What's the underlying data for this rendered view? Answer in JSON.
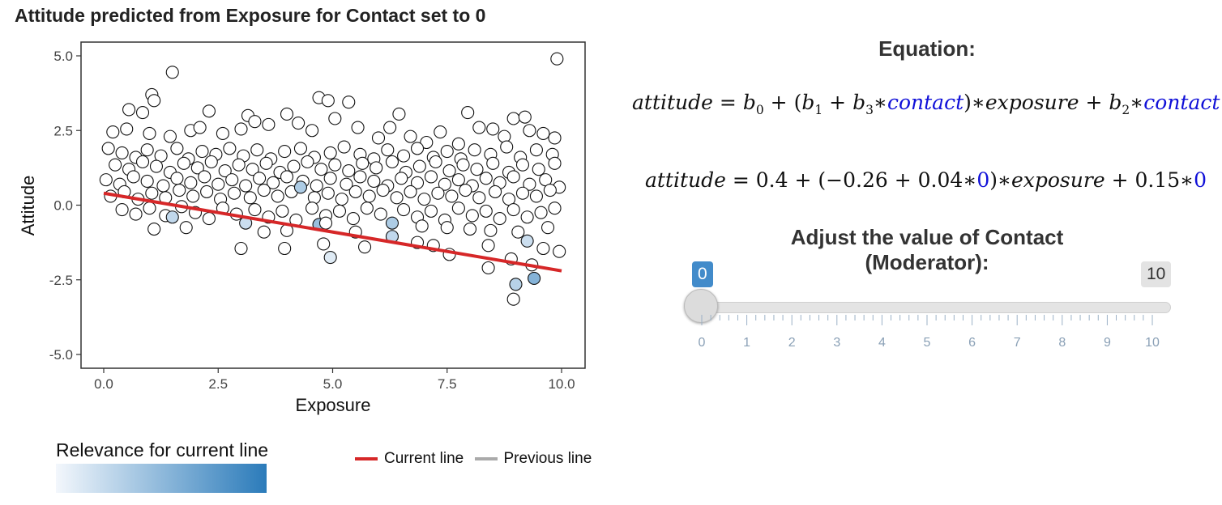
{
  "plot": {
    "title": "Attitude predicted from Exposure for Contact set to 0"
  },
  "chart_data": {
    "type": "scatter",
    "title": "Attitude predicted from Exposure for Contact set to 0",
    "xlabel": "Exposure",
    "ylabel": "Attitude",
    "xlim": [
      0,
      10
    ],
    "ylim": [
      -5,
      5
    ],
    "x_ticks": [
      "0.0",
      "2.5",
      "5.0",
      "7.5",
      "10.0"
    ],
    "y_ticks": [
      "-5.0",
      "-2.5",
      "0.0",
      "2.5",
      "5.0"
    ],
    "grid": false,
    "regression_line": {
      "name": "Current line",
      "intercept": 0.4,
      "slope": -0.26,
      "color": "#d62728"
    },
    "legend": {
      "color_title": "Relevance for current line",
      "color_low": "#f3f7fc",
      "color_high": "#2b7bba",
      "line_items": [
        {
          "label": "Current line",
          "color": "#d62728"
        },
        {
          "label": "Previous line",
          "color": "#aaaaaa"
        }
      ]
    },
    "points_note_relevance_0_to_1": [],
    "points": [
      [
        9.9,
        4.9,
        0
      ],
      [
        1.5,
        4.45,
        0
      ],
      [
        1.05,
        3.7,
        0
      ],
      [
        1.1,
        3.5,
        0
      ],
      [
        0.55,
        3.2,
        0
      ],
      [
        0.85,
        3.1,
        0
      ],
      [
        2.3,
        3.15,
        0
      ],
      [
        3.15,
        3.0,
        0
      ],
      [
        4.0,
        3.05,
        0
      ],
      [
        4.7,
        3.6,
        0
      ],
      [
        4.9,
        3.5,
        0
      ],
      [
        5.35,
        3.45,
        0
      ],
      [
        6.45,
        3.05,
        0
      ],
      [
        7.95,
        3.1,
        0
      ],
      [
        8.95,
        2.9,
        0
      ],
      [
        9.2,
        2.95,
        0
      ],
      [
        0.2,
        2.45,
        0
      ],
      [
        0.5,
        2.55,
        0
      ],
      [
        1.0,
        2.4,
        0
      ],
      [
        1.45,
        2.3,
        0
      ],
      [
        1.9,
        2.5,
        0
      ],
      [
        2.1,
        2.6,
        0
      ],
      [
        2.6,
        2.4,
        0
      ],
      [
        3.0,
        2.55,
        0
      ],
      [
        3.3,
        2.8,
        0
      ],
      [
        3.6,
        2.7,
        0
      ],
      [
        4.25,
        2.75,
        0
      ],
      [
        4.55,
        2.5,
        0
      ],
      [
        5.05,
        2.9,
        0
      ],
      [
        5.55,
        2.6,
        0
      ],
      [
        6.0,
        2.25,
        0
      ],
      [
        6.25,
        2.6,
        0
      ],
      [
        6.7,
        2.3,
        0
      ],
      [
        7.05,
        2.1,
        0
      ],
      [
        7.35,
        2.45,
        0
      ],
      [
        7.75,
        2.05,
        0
      ],
      [
        8.2,
        2.6,
        0
      ],
      [
        8.5,
        2.55,
        0
      ],
      [
        8.75,
        2.3,
        0
      ],
      [
        9.3,
        2.5,
        0
      ],
      [
        9.6,
        2.4,
        0
      ],
      [
        9.85,
        2.25,
        0
      ],
      [
        0.1,
        1.9,
        0
      ],
      [
        0.4,
        1.75,
        0
      ],
      [
        0.7,
        1.6,
        0
      ],
      [
        0.95,
        1.85,
        0
      ],
      [
        1.25,
        1.65,
        0
      ],
      [
        1.6,
        1.9,
        0
      ],
      [
        1.85,
        1.55,
        0
      ],
      [
        2.15,
        1.8,
        0
      ],
      [
        2.45,
        1.7,
        0
      ],
      [
        2.75,
        1.9,
        0
      ],
      [
        3.05,
        1.65,
        0
      ],
      [
        3.35,
        1.85,
        0
      ],
      [
        3.65,
        1.55,
        0
      ],
      [
        3.95,
        1.8,
        0
      ],
      [
        4.3,
        1.9,
        0
      ],
      [
        4.6,
        1.6,
        0
      ],
      [
        4.95,
        1.75,
        0
      ],
      [
        5.25,
        1.95,
        0
      ],
      [
        5.6,
        1.7,
        0
      ],
      [
        5.9,
        1.55,
        0
      ],
      [
        6.2,
        1.85,
        0
      ],
      [
        6.55,
        1.65,
        0
      ],
      [
        6.85,
        1.9,
        0
      ],
      [
        7.2,
        1.6,
        0
      ],
      [
        7.5,
        1.8,
        0
      ],
      [
        7.8,
        1.55,
        0
      ],
      [
        8.1,
        1.85,
        0
      ],
      [
        8.45,
        1.7,
        0
      ],
      [
        8.8,
        1.95,
        0
      ],
      [
        9.1,
        1.6,
        0
      ],
      [
        9.45,
        1.85,
        0
      ],
      [
        9.8,
        1.7,
        0
      ],
      [
        0.25,
        1.35,
        0
      ],
      [
        0.55,
        1.2,
        0
      ],
      [
        0.85,
        1.45,
        0
      ],
      [
        1.15,
        1.3,
        0
      ],
      [
        1.45,
        1.1,
        0
      ],
      [
        1.75,
        1.4,
        0
      ],
      [
        2.05,
        1.25,
        0
      ],
      [
        2.35,
        1.45,
        0
      ],
      [
        2.65,
        1.15,
        0
      ],
      [
        2.95,
        1.35,
        0
      ],
      [
        3.25,
        1.2,
        0
      ],
      [
        3.55,
        1.4,
        0
      ],
      [
        3.85,
        1.1,
        0
      ],
      [
        4.15,
        1.3,
        0
      ],
      [
        4.45,
        1.45,
        0
      ],
      [
        4.75,
        1.2,
        0
      ],
      [
        5.05,
        1.35,
        0
      ],
      [
        5.35,
        1.15,
        0
      ],
      [
        5.65,
        1.4,
        0
      ],
      [
        5.95,
        1.25,
        0
      ],
      [
        6.3,
        1.45,
        0
      ],
      [
        6.6,
        1.1,
        0
      ],
      [
        6.9,
        1.3,
        0
      ],
      [
        7.25,
        1.45,
        0
      ],
      [
        7.55,
        1.15,
        0
      ],
      [
        7.85,
        1.35,
        0
      ],
      [
        8.15,
        1.2,
        0
      ],
      [
        8.5,
        1.4,
        0
      ],
      [
        8.85,
        1.1,
        0
      ],
      [
        9.15,
        1.35,
        0
      ],
      [
        9.5,
        1.2,
        0
      ],
      [
        9.85,
        1.4,
        0
      ],
      [
        0.05,
        0.85,
        0
      ],
      [
        0.35,
        0.7,
        0
      ],
      [
        0.65,
        0.95,
        0
      ],
      [
        0.95,
        0.8,
        0
      ],
      [
        1.3,
        0.65,
        0
      ],
      [
        1.6,
        0.9,
        0
      ],
      [
        1.9,
        0.75,
        0
      ],
      [
        2.2,
        0.95,
        0
      ],
      [
        2.5,
        0.7,
        0
      ],
      [
        2.8,
        0.85,
        0
      ],
      [
        3.1,
        0.65,
        0
      ],
      [
        3.4,
        0.9,
        0
      ],
      [
        3.7,
        0.75,
        0
      ],
      [
        4.0,
        0.95,
        0
      ],
      [
        4.35,
        0.8,
        0
      ],
      [
        4.65,
        0.65,
        0
      ],
      [
        4.95,
        0.9,
        0
      ],
      [
        5.3,
        0.7,
        0
      ],
      [
        5.6,
        0.95,
        0
      ],
      [
        5.9,
        0.8,
        0
      ],
      [
        6.2,
        0.65,
        0
      ],
      [
        6.5,
        0.9,
        0
      ],
      [
        6.85,
        0.75,
        0
      ],
      [
        7.15,
        0.95,
        0
      ],
      [
        7.45,
        0.7,
        0
      ],
      [
        7.75,
        0.85,
        0
      ],
      [
        8.05,
        0.65,
        0
      ],
      [
        8.35,
        0.9,
        0
      ],
      [
        8.65,
        0.75,
        0
      ],
      [
        8.95,
        0.95,
        0
      ],
      [
        9.3,
        0.7,
        0
      ],
      [
        9.65,
        0.85,
        0
      ],
      [
        9.95,
        0.6,
        0
      ],
      [
        0.15,
        0.3,
        0
      ],
      [
        0.45,
        0.45,
        0
      ],
      [
        0.75,
        0.2,
        0
      ],
      [
        1.05,
        0.4,
        0
      ],
      [
        1.35,
        0.25,
        0
      ],
      [
        1.65,
        0.5,
        0
      ],
      [
        1.95,
        0.3,
        0
      ],
      [
        2.25,
        0.45,
        0
      ],
      [
        2.55,
        0.2,
        0
      ],
      [
        2.85,
        0.4,
        0
      ],
      [
        3.2,
        0.25,
        0
      ],
      [
        3.5,
        0.5,
        0
      ],
      [
        3.8,
        0.3,
        0
      ],
      [
        4.1,
        0.45,
        0
      ],
      [
        4.3,
        0.6,
        0.35
      ],
      [
        4.6,
        0.25,
        0
      ],
      [
        4.9,
        0.4,
        0
      ],
      [
        5.2,
        0.2,
        0
      ],
      [
        5.5,
        0.45,
        0
      ],
      [
        5.8,
        0.3,
        0
      ],
      [
        6.1,
        0.5,
        0
      ],
      [
        6.4,
        0.25,
        0
      ],
      [
        6.7,
        0.45,
        0
      ],
      [
        7.0,
        0.2,
        0
      ],
      [
        7.3,
        0.4,
        0
      ],
      [
        7.6,
        0.3,
        0
      ],
      [
        7.9,
        0.5,
        0
      ],
      [
        8.2,
        0.25,
        0
      ],
      [
        8.55,
        0.45,
        0
      ],
      [
        8.85,
        0.2,
        0
      ],
      [
        9.15,
        0.4,
        0
      ],
      [
        9.45,
        0.3,
        0
      ],
      [
        9.75,
        0.5,
        0
      ],
      [
        0.4,
        -0.15,
        0
      ],
      [
        0.7,
        -0.3,
        0
      ],
      [
        1.0,
        -0.1,
        0
      ],
      [
        1.35,
        -0.35,
        0
      ],
      [
        1.5,
        -0.4,
        0.25
      ],
      [
        1.7,
        -0.05,
        0
      ],
      [
        2.0,
        -0.25,
        0
      ],
      [
        2.3,
        -0.45,
        0
      ],
      [
        2.6,
        -0.1,
        0
      ],
      [
        2.9,
        -0.3,
        0
      ],
      [
        3.1,
        -0.6,
        0.2
      ],
      [
        3.3,
        -0.15,
        0
      ],
      [
        3.6,
        -0.4,
        0
      ],
      [
        3.9,
        -0.2,
        0
      ],
      [
        4.2,
        -0.5,
        0
      ],
      [
        4.55,
        -0.1,
        0
      ],
      [
        4.85,
        -0.35,
        0
      ],
      [
        5.15,
        -0.2,
        0
      ],
      [
        5.45,
        -0.45,
        0
      ],
      [
        5.75,
        -0.1,
        0
      ],
      [
        6.05,
        -0.3,
        0
      ],
      [
        6.3,
        -0.6,
        0.35
      ],
      [
        6.55,
        -0.15,
        0
      ],
      [
        6.85,
        -0.4,
        0
      ],
      [
        7.15,
        -0.2,
        0
      ],
      [
        7.45,
        -0.5,
        0
      ],
      [
        7.75,
        -0.1,
        0
      ],
      [
        8.05,
        -0.35,
        0
      ],
      [
        8.35,
        -0.2,
        0
      ],
      [
        8.65,
        -0.45,
        0
      ],
      [
        8.95,
        -0.15,
        0
      ],
      [
        9.25,
        -0.4,
        0
      ],
      [
        9.55,
        -0.25,
        0
      ],
      [
        9.85,
        -0.1,
        0
      ],
      [
        1.1,
        -0.8,
        0
      ],
      [
        1.8,
        -0.75,
        0
      ],
      [
        3.5,
        -0.9,
        0
      ],
      [
        4.0,
        -0.85,
        0
      ],
      [
        4.7,
        -0.65,
        0.45
      ],
      [
        4.85,
        -0.6,
        0
      ],
      [
        5.5,
        -0.9,
        0
      ],
      [
        6.3,
        -1.05,
        0.25
      ],
      [
        6.95,
        -0.7,
        0
      ],
      [
        7.5,
        -0.75,
        0
      ],
      [
        8.0,
        -0.8,
        0
      ],
      [
        8.45,
        -0.85,
        0
      ],
      [
        9.05,
        -0.9,
        0
      ],
      [
        9.25,
        -1.2,
        0.2
      ],
      [
        9.7,
        -0.75,
        0
      ],
      [
        3.0,
        -1.45,
        0
      ],
      [
        3.95,
        -1.45,
        0
      ],
      [
        4.8,
        -1.3,
        0
      ],
      [
        4.95,
        -1.75,
        0.1
      ],
      [
        5.7,
        -1.4,
        0
      ],
      [
        6.85,
        -1.25,
        0
      ],
      [
        7.2,
        -1.35,
        0
      ],
      [
        7.55,
        -1.65,
        0
      ],
      [
        8.4,
        -1.35,
        0
      ],
      [
        8.9,
        -1.8,
        0
      ],
      [
        9.6,
        -1.45,
        0
      ],
      [
        9.95,
        -1.55,
        0
      ],
      [
        8.4,
        -2.1,
        0
      ],
      [
        9.35,
        -2.0,
        0
      ],
      [
        9.0,
        -2.65,
        0.3
      ],
      [
        9.4,
        -2.45,
        0.55
      ],
      [
        8.95,
        -3.15,
        0
      ]
    ]
  },
  "equation": {
    "heading": "Equation:",
    "symbolic": {
      "lhs": "attitude",
      "eq": "=",
      "b0": "b",
      "b0_sub": "0",
      "plus1": "+",
      "open": "(",
      "b1": "b",
      "b1_sub": "1",
      "plus2": "+",
      "b3": "b",
      "b3_sub": "3",
      "times1": "∗",
      "moderator1": "contact",
      "close": ")",
      "times2": "∗",
      "predictor": "exposure",
      "plus3": "+",
      "b2": "b",
      "b2_sub": "2",
      "times3": "∗",
      "moderator2": "contact"
    },
    "numeric": {
      "lhs": "attitude",
      "eq": "=",
      "intercept": "0.4",
      "plus1": "+",
      "open": "(",
      "slope": "−0.26",
      "plus2": "+",
      "interaction": "0.04",
      "times1": "∗",
      "moderator_value1": "0",
      "close": ")",
      "times2": "∗",
      "predictor": "exposure",
      "plus3": "+",
      "moderator_coef": "0.15",
      "times3": "∗",
      "moderator_value2": "0"
    }
  },
  "slider": {
    "heading": "Adjust the value of Contact (Moderator):",
    "min": 0,
    "max": 10,
    "value": 0,
    "value_label": "0",
    "max_label": "10",
    "tick_labels": [
      "0",
      "1",
      "2",
      "3",
      "4",
      "5",
      "6",
      "7",
      "8",
      "9",
      "10"
    ]
  },
  "colors": {
    "accent": "#428bca",
    "line": "#d62728",
    "equation_blue": "#1010d8"
  }
}
